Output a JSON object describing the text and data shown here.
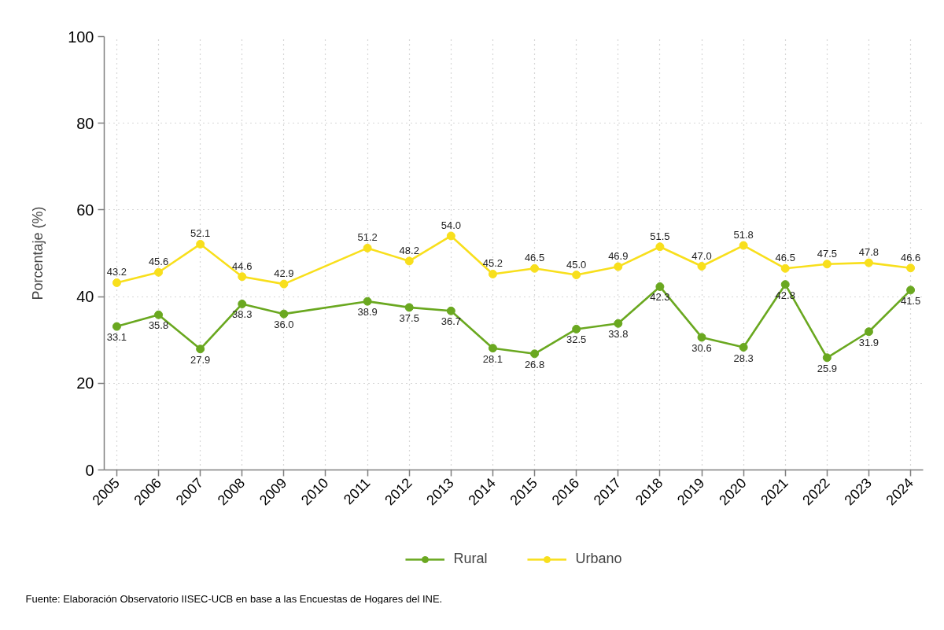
{
  "chart_data": {
    "type": "line",
    "ylabel": "Porcentaje (%)",
    "x": [
      2005,
      2006,
      2007,
      2008,
      2009,
      2011,
      2012,
      2013,
      2014,
      2015,
      2016,
      2017,
      2018,
      2019,
      2020,
      2021,
      2022,
      2023,
      2024
    ],
    "series": [
      {
        "name": "Rural",
        "color": "#6aa820",
        "values": [
          33.1,
          35.8,
          27.9,
          38.3,
          36.0,
          38.9,
          37.5,
          36.7,
          28.1,
          26.8,
          32.5,
          33.8,
          42.3,
          30.6,
          28.3,
          42.8,
          25.9,
          31.9,
          41.5
        ],
        "value_labels": [
          "33.1",
          "35.8",
          "27.9",
          "38.3",
          "36.0",
          "38.9",
          "37.5",
          "36.7",
          "28.1",
          "26.8",
          "32.5",
          "33.8",
          "42.3",
          "30.6",
          "28.3",
          "42.8",
          "25.9",
          "31.9",
          "41.5"
        ]
      },
      {
        "name": "Urbano",
        "color": "#f8df1c",
        "values": [
          43.2,
          45.6,
          52.1,
          44.6,
          42.9,
          51.2,
          48.2,
          54.0,
          45.2,
          46.5,
          45.0,
          46.9,
          51.5,
          47.0,
          51.8,
          46.5,
          47.5,
          47.8,
          46.6
        ],
        "value_labels": [
          "43.2",
          "45.6",
          "52.1",
          "44.6",
          "42.9",
          "51.2",
          "48.2",
          "54.0",
          "45.2",
          "46.5",
          "45.0",
          "46.9",
          "51.5",
          "47.0",
          "51.8",
          "46.5",
          "47.5",
          "47.8",
          "46.6"
        ]
      }
    ],
    "xlim": [
      2004.7,
      2024.3
    ],
    "xticks": [
      2005,
      2006,
      2007,
      2008,
      2009,
      2010,
      2011,
      2012,
      2013,
      2014,
      2015,
      2016,
      2017,
      2018,
      2019,
      2020,
      2021,
      2022,
      2023,
      2024
    ],
    "ylim": [
      0,
      100
    ],
    "yticks": [
      0,
      20,
      40,
      60,
      80,
      100
    ],
    "grid": true,
    "legend": "bottom",
    "marker": "circle",
    "line_style": "solid",
    "annotations": [
      "Fuente: Elaboración Observatorio IISEC-UCB en base a las Encuestas de Hogares del INE."
    ]
  }
}
